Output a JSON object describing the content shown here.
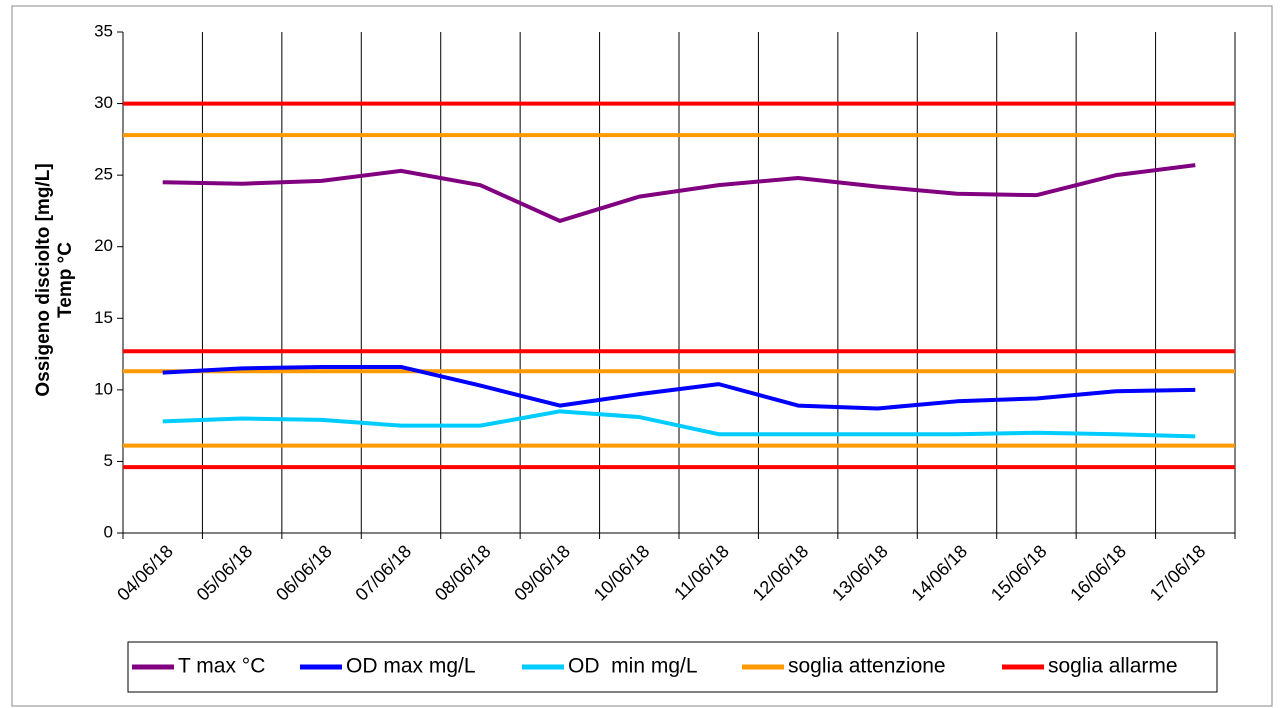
{
  "chart_data": {
    "type": "line",
    "y_label": [
      "Ossigeno disciolto [mg/L]",
      "Temp °C"
    ],
    "categories": [
      "04/06/18",
      "05/06/18",
      "06/06/18",
      "07/06/18",
      "08/06/18",
      "09/06/18",
      "10/06/18",
      "11/06/18",
      "12/06/18",
      "13/06/18",
      "14/06/18",
      "15/06/18",
      "16/06/18",
      "17/06/18"
    ],
    "series": [
      {
        "name": "T max °C",
        "color": "#800080",
        "values": [
          24.5,
          24.4,
          24.6,
          25.3,
          24.3,
          21.8,
          23.5,
          24.3,
          24.8,
          24.2,
          23.7,
          23.6,
          25.0,
          25.7
        ]
      },
      {
        "name": "OD max mg/L",
        "color": "#0000ff",
        "values": [
          11.2,
          11.5,
          11.6,
          11.6,
          10.3,
          8.9,
          9.7,
          10.4,
          8.9,
          8.7,
          9.2,
          9.4,
          9.9,
          10.0
        ]
      },
      {
        "name": "OD  min mg/L",
        "color": "#00ccff",
        "values": [
          7.8,
          8.0,
          7.9,
          7.5,
          7.5,
          8.5,
          8.1,
          6.9,
          6.9,
          6.9,
          6.9,
          7.0,
          6.9,
          6.75
        ]
      },
      {
        "name": "soglia attenzione",
        "color": "#ff9900",
        "levels": [
          27.8,
          11.3,
          6.1
        ]
      },
      {
        "name": "soglia allarme",
        "color": "#ff0000",
        "levels": [
          30,
          12.7,
          4.6
        ]
      }
    ],
    "ylim": [
      0,
      35
    ],
    "yticks": [
      0,
      5,
      10,
      15,
      20,
      25,
      30,
      35
    ],
    "legend": "bottom"
  }
}
